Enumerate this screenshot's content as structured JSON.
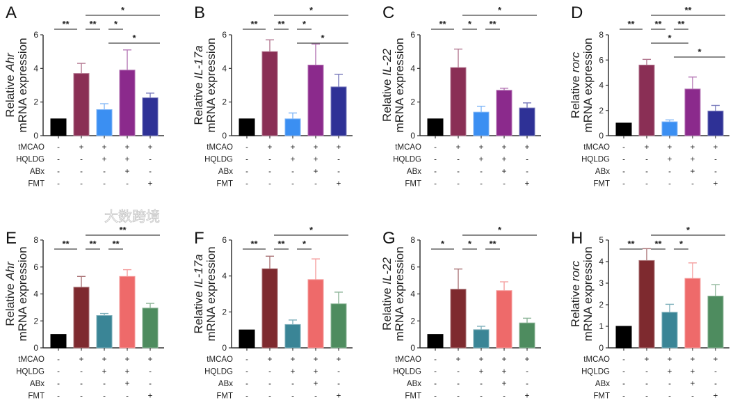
{
  "conditions": [
    {
      "name": "tMCAO",
      "marks": [
        "-",
        "+",
        "+",
        "+",
        "+"
      ]
    },
    {
      "name": "HQLDG",
      "marks": [
        "-",
        "-",
        "+",
        "+",
        "-"
      ]
    },
    {
      "name": "ABx",
      "marks": [
        "-",
        "-",
        "-",
        "+",
        "-"
      ]
    },
    {
      "name": "FMT",
      "marks": [
        "-",
        "-",
        "-",
        "-",
        "+"
      ]
    }
  ],
  "watermark": "大数跨境",
  "chart_data": [
    {
      "type": "bar",
      "panel": "A",
      "ylabel_prefix": "Relative ",
      "gene": "Ahr",
      "ylabel_line2": "mRNA expression",
      "ylim": [
        0,
        6
      ],
      "yticks": [
        "0",
        "2",
        "4",
        "6"
      ],
      "values": [
        1,
        3.7,
        1.55,
        3.9,
        2.25
      ],
      "errors": [
        0,
        0.6,
        0.35,
        1.2,
        0.28
      ],
      "colors": [
        "#000000",
        "#8a2f55",
        "#3b8ff2",
        "#8b2a8c",
        "#2e3196"
      ],
      "significance": [
        {
          "from": 1,
          "to": 4,
          "label": "*",
          "tier": 0
        },
        {
          "from": 0,
          "to": 1,
          "label": "**",
          "tier": 1
        },
        {
          "from": 1,
          "to": 2,
          "label": "**",
          "tier": 1
        },
        {
          "from": 2,
          "to": 3,
          "label": "*",
          "tier": 1
        },
        {
          "from": 2,
          "to": 4,
          "label": "*",
          "tier": 2
        }
      ]
    },
    {
      "type": "bar",
      "panel": "B",
      "ylabel_prefix": "Relative ",
      "gene": "IL-17a",
      "ylabel_line2": "mRNA expression",
      "ylim": [
        0,
        6
      ],
      "yticks": [
        "0",
        "2",
        "4",
        "6"
      ],
      "values": [
        1,
        5.0,
        1.0,
        4.2,
        2.9
      ],
      "errors": [
        0,
        0.7,
        0.35,
        1.25,
        0.75
      ],
      "colors": [
        "#000000",
        "#8a2f55",
        "#3b8ff2",
        "#8b2a8c",
        "#2e3196"
      ],
      "significance": [
        {
          "from": 1,
          "to": 4,
          "label": "*",
          "tier": 0
        },
        {
          "from": 0,
          "to": 1,
          "label": "**",
          "tier": 1
        },
        {
          "from": 1,
          "to": 2,
          "label": "**",
          "tier": 1
        },
        {
          "from": 2,
          "to": 3,
          "label": "*",
          "tier": 1
        },
        {
          "from": 2,
          "to": 4,
          "label": "*",
          "tier": 2
        }
      ]
    },
    {
      "type": "bar",
      "panel": "C",
      "ylabel_prefix": "Relative ",
      "gene": "IL-22",
      "ylabel_line2": "mRNA expression",
      "ylim": [
        0,
        6
      ],
      "yticks": [
        "0",
        "2",
        "4",
        "6"
      ],
      "values": [
        1,
        4.05,
        1.4,
        2.7,
        1.65
      ],
      "errors": [
        0,
        1.1,
        0.35,
        0.12,
        0.3
      ],
      "colors": [
        "#000000",
        "#8a2f55",
        "#3b8ff2",
        "#8b2a8c",
        "#2e3196"
      ],
      "significance": [
        {
          "from": 1,
          "to": 4,
          "label": "*",
          "tier": 0
        },
        {
          "from": 0,
          "to": 1,
          "label": "**",
          "tier": 1
        },
        {
          "from": 1,
          "to": 2,
          "label": "*",
          "tier": 1
        },
        {
          "from": 2,
          "to": 3,
          "label": "**",
          "tier": 1
        }
      ]
    },
    {
      "type": "bar",
      "panel": "D",
      "ylabel_prefix": "Relative ",
      "gene": "rorc",
      "ylabel_line2": "mRNA expression",
      "ylim": [
        0,
        8
      ],
      "yticks": [
        "0",
        "2",
        "4",
        "6",
        "8"
      ],
      "values": [
        1,
        5.6,
        1.1,
        3.7,
        1.95
      ],
      "errors": [
        0,
        0.45,
        0.15,
        0.95,
        0.45
      ],
      "colors": [
        "#000000",
        "#8a2f55",
        "#3b8ff2",
        "#8b2a8c",
        "#2e3196"
      ],
      "significance": [
        {
          "from": 1,
          "to": 4,
          "label": "**",
          "tier": 0
        },
        {
          "from": 0,
          "to": 1,
          "label": "**",
          "tier": 1
        },
        {
          "from": 1,
          "to": 2,
          "label": "**",
          "tier": 1
        },
        {
          "from": 2,
          "to": 3,
          "label": "**",
          "tier": 1
        },
        {
          "from": 1,
          "to": 3,
          "label": "*",
          "tier": 2
        },
        {
          "from": 2,
          "to": 4,
          "label": "*",
          "tier": 3
        }
      ]
    },
    {
      "type": "bar",
      "panel": "E",
      "ylabel_prefix": "Relative ",
      "gene": "Ahr",
      "ylabel_line2": "mRNA expression",
      "ylim": [
        0,
        8
      ],
      "yticks": [
        "0",
        "2",
        "4",
        "6",
        "8"
      ],
      "values": [
        1,
        4.5,
        2.4,
        5.3,
        2.95
      ],
      "errors": [
        0,
        0.8,
        0.15,
        0.5,
        0.35
      ],
      "colors": [
        "#000000",
        "#7e2a2f",
        "#3a8596",
        "#ee6a6a",
        "#4e8c5f"
      ],
      "significance": [
        {
          "from": 1,
          "to": 4,
          "label": "**",
          "tier": 0
        },
        {
          "from": 0,
          "to": 1,
          "label": "**",
          "tier": 1
        },
        {
          "from": 1,
          "to": 2,
          "label": "**",
          "tier": 1
        },
        {
          "from": 2,
          "to": 3,
          "label": "**",
          "tier": 1
        }
      ]
    },
    {
      "type": "bar",
      "panel": "F",
      "ylabel_prefix": "Relative ",
      "gene": "IL-17a",
      "ylabel_line2": "mRNA expression",
      "ylim": [
        0,
        6
      ],
      "yticks": [
        "0",
        "2",
        "4",
        "6"
      ],
      "values": [
        1,
        4.4,
        1.3,
        3.8,
        2.45
      ],
      "errors": [
        0,
        0.7,
        0.25,
        1.15,
        0.65
      ],
      "colors": [
        "#000000",
        "#7e2a2f",
        "#3a8596",
        "#ee6a6a",
        "#4e8c5f"
      ],
      "significance": [
        {
          "from": 1,
          "to": 4,
          "label": "*",
          "tier": 0
        },
        {
          "from": 0,
          "to": 1,
          "label": "**",
          "tier": 1
        },
        {
          "from": 1,
          "to": 2,
          "label": "**",
          "tier": 1
        },
        {
          "from": 2,
          "to": 3,
          "label": "*",
          "tier": 1
        }
      ]
    },
    {
      "type": "bar",
      "panel": "G",
      "ylabel_prefix": "Relative ",
      "gene": "IL-22",
      "ylabel_line2": "mRNA expression",
      "ylim": [
        0,
        8
      ],
      "yticks": [
        "0",
        "2",
        "4",
        "6",
        "8"
      ],
      "values": [
        1,
        4.35,
        1.35,
        4.25,
        1.85
      ],
      "errors": [
        0,
        1.5,
        0.25,
        0.65,
        0.35
      ],
      "colors": [
        "#000000",
        "#7e2a2f",
        "#3a8596",
        "#ee6a6a",
        "#4e8c5f"
      ],
      "significance": [
        {
          "from": 1,
          "to": 4,
          "label": "*",
          "tier": 0
        },
        {
          "from": 0,
          "to": 1,
          "label": "*",
          "tier": 1
        },
        {
          "from": 1,
          "to": 2,
          "label": "*",
          "tier": 1
        },
        {
          "from": 2,
          "to": 3,
          "label": "**",
          "tier": 1
        }
      ]
    },
    {
      "type": "bar",
      "panel": "H",
      "ylabel_prefix": "Relative ",
      "gene": "rorc",
      "ylabel_line2": "mRNA expression",
      "ylim": [
        0,
        5
      ],
      "yticks": [
        "0",
        "1",
        "2",
        "3",
        "4",
        "5"
      ],
      "values": [
        1,
        4.05,
        1.65,
        3.22,
        2.4
      ],
      "errors": [
        0,
        0.55,
        0.37,
        0.72,
        0.53
      ],
      "colors": [
        "#000000",
        "#7e2a2f",
        "#3a8596",
        "#ee6a6a",
        "#4e8c5f"
      ],
      "significance": [
        {
          "from": 1,
          "to": 4,
          "label": "*",
          "tier": 0
        },
        {
          "from": 0,
          "to": 1,
          "label": "**",
          "tier": 1
        },
        {
          "from": 1,
          "to": 2,
          "label": "**",
          "tier": 1
        },
        {
          "from": 2,
          "to": 3,
          "label": "*",
          "tier": 1
        }
      ]
    }
  ]
}
